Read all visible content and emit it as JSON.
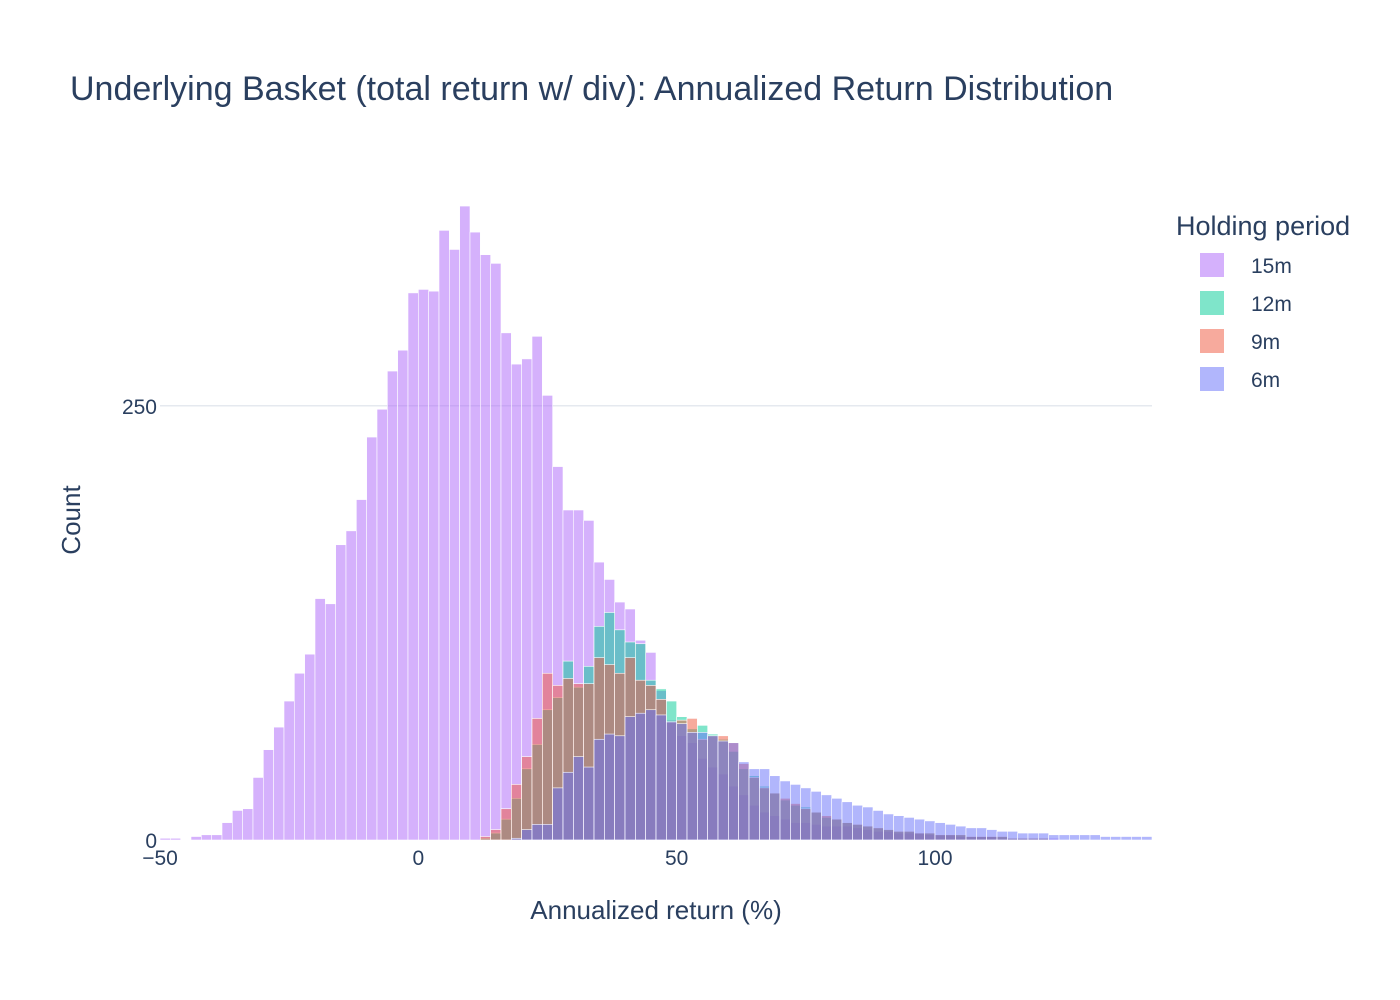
{
  "chart_data": {
    "type": "bar",
    "title": "Underlying Basket (total return w/ div): Annualized Return Distribution",
    "xlabel": "Annualized return (%)",
    "ylabel": "Count",
    "xlim": [
      -50,
      142
    ],
    "ylim": [
      0,
      380
    ],
    "x_ticks": [
      -50,
      0,
      50,
      100
    ],
    "y_ticks": [
      0,
      250
    ],
    "grid": true,
    "barmode": "overlay",
    "bin_width": 2,
    "legend_title": "Holding period",
    "legend_position": "right",
    "x": [
      -49,
      -47,
      -45,
      -43,
      -41,
      -39,
      -37,
      -35,
      -33,
      -31,
      -29,
      -27,
      -25,
      -23,
      -21,
      -19,
      -17,
      -15,
      -13,
      -11,
      -9,
      -7,
      -5,
      -3,
      -1,
      1,
      3,
      5,
      7,
      9,
      11,
      13,
      15,
      17,
      19,
      21,
      23,
      25,
      27,
      29,
      31,
      33,
      35,
      37,
      39,
      41,
      43,
      45,
      47,
      49,
      51,
      53,
      55,
      57,
      59,
      61,
      63,
      65,
      67,
      69,
      71,
      73,
      75,
      77,
      79,
      81,
      83,
      85,
      87,
      89,
      91,
      93,
      95,
      97,
      99,
      101,
      103,
      105,
      107,
      109,
      111,
      113,
      115,
      117,
      119,
      121,
      123,
      125,
      127,
      129,
      131,
      133,
      135,
      137,
      139,
      141
    ],
    "series": [
      {
        "name": "15m",
        "color": "#ab63fa",
        "values": [
          1,
          1,
          0,
          2,
          3,
          3,
          10,
          17,
          18,
          36,
          52,
          65,
          80,
          96,
          107,
          139,
          136,
          170,
          178,
          196,
          232,
          248,
          270,
          282,
          315,
          317,
          316,
          351,
          340,
          365,
          350,
          337,
          332,
          292,
          274,
          277,
          290,
          256,
          215,
          190,
          190,
          184,
          160,
          150,
          137,
          133,
          115,
          108,
          86,
          69,
          60,
          56,
          47,
          42,
          38,
          31,
          26,
          20,
          16,
          14,
          12,
          10,
          10,
          9,
          8,
          8,
          8,
          7,
          6,
          5,
          5,
          4,
          4,
          4,
          3,
          3,
          3,
          2,
          2,
          2,
          2,
          1,
          1,
          1,
          1,
          1,
          1,
          0,
          0,
          0,
          0,
          0,
          0,
          0,
          0,
          0
        ]
      },
      {
        "name": "12m",
        "color": "#00cc96",
        "values": [
          0,
          0,
          0,
          0,
          0,
          0,
          0,
          0,
          0,
          0,
          0,
          0,
          0,
          0,
          0,
          0,
          0,
          0,
          0,
          0,
          0,
          0,
          0,
          0,
          0,
          0,
          0,
          0,
          0,
          0,
          0,
          1,
          4,
          12,
          24,
          41,
          55,
          75,
          82,
          103,
          88,
          100,
          123,
          131,
          121,
          114,
          113,
          92,
          87,
          80,
          71,
          64,
          66,
          61,
          58,
          51,
          41,
          37,
          31,
          27,
          23,
          20,
          19,
          16,
          13,
          12,
          10,
          9,
          8,
          7,
          6,
          5,
          5,
          4,
          4,
          3,
          3,
          3,
          2,
          2,
          2,
          2,
          1,
          1,
          1,
          1,
          0,
          0,
          0,
          0,
          0,
          0,
          0,
          0,
          0,
          0
        ]
      },
      {
        "name": "9m",
        "color": "#ef553b",
        "values": [
          0,
          0,
          0,
          0,
          0,
          0,
          0,
          0,
          0,
          0,
          0,
          0,
          0,
          0,
          0,
          0,
          0,
          0,
          0,
          0,
          0,
          0,
          0,
          0,
          0,
          0,
          0,
          0,
          0,
          0,
          0,
          2,
          6,
          18,
          32,
          48,
          70,
          96,
          89,
          93,
          90,
          90,
          105,
          101,
          96,
          105,
          92,
          89,
          81,
          68,
          69,
          70,
          58,
          60,
          60,
          56,
          44,
          36,
          30,
          27,
          24,
          21,
          18,
          16,
          14,
          12,
          10,
          9,
          8,
          7,
          6,
          5,
          5,
          4,
          4,
          3,
          3,
          3,
          2,
          2,
          2,
          2,
          1,
          1,
          1,
          1,
          0,
          0,
          0,
          0,
          0,
          0,
          0,
          0,
          0,
          0
        ]
      },
      {
        "name": "6m",
        "color": "#636efa",
        "values": [
          0,
          0,
          0,
          0,
          0,
          0,
          0,
          0,
          0,
          0,
          0,
          0,
          0,
          0,
          0,
          0,
          0,
          0,
          0,
          0,
          0,
          0,
          0,
          0,
          0,
          0,
          0,
          0,
          0,
          0,
          0,
          0,
          0,
          0,
          1,
          6,
          9,
          9,
          30,
          39,
          48,
          42,
          58,
          61,
          60,
          71,
          73,
          75,
          72,
          68,
          67,
          62,
          62,
          60,
          57,
          56,
          45,
          41,
          41,
          37,
          34,
          32,
          30,
          28,
          26,
          24,
          22,
          20,
          19,
          17,
          15,
          14,
          13,
          12,
          11,
          10,
          9,
          8,
          7,
          7,
          6,
          5,
          5,
          4,
          4,
          4,
          3,
          3,
          3,
          3,
          3,
          2,
          2,
          2,
          2,
          2
        ]
      }
    ]
  }
}
